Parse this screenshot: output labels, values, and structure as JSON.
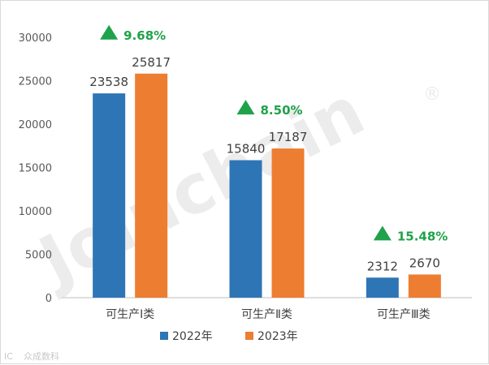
{
  "chart_data": {
    "type": "bar",
    "categories": [
      "可生产Ⅰ类",
      "可生产Ⅱ类",
      "可生产Ⅲ类"
    ],
    "series": [
      {
        "name": "2022年",
        "values": [
          23538,
          15840,
          2312
        ],
        "color": "#2e75b6"
      },
      {
        "name": "2023年",
        "values": [
          25817,
          17187,
          2670
        ],
        "color": "#ed7d31"
      }
    ],
    "growth_labels": [
      "9.68%",
      "8.50%",
      "15.48%"
    ],
    "growth_color": "#1fa24a",
    "ylim": [
      0,
      30000
    ],
    "yticks": [
      0,
      5000,
      10000,
      15000,
      20000,
      25000,
      30000
    ],
    "grid": false,
    "legend_position": "bottom"
  },
  "watermark": {
    "text": "Joinchain",
    "mark": "®"
  },
  "credit": {
    "icon": "ic-logo-icon",
    "text": "众成数科"
  }
}
